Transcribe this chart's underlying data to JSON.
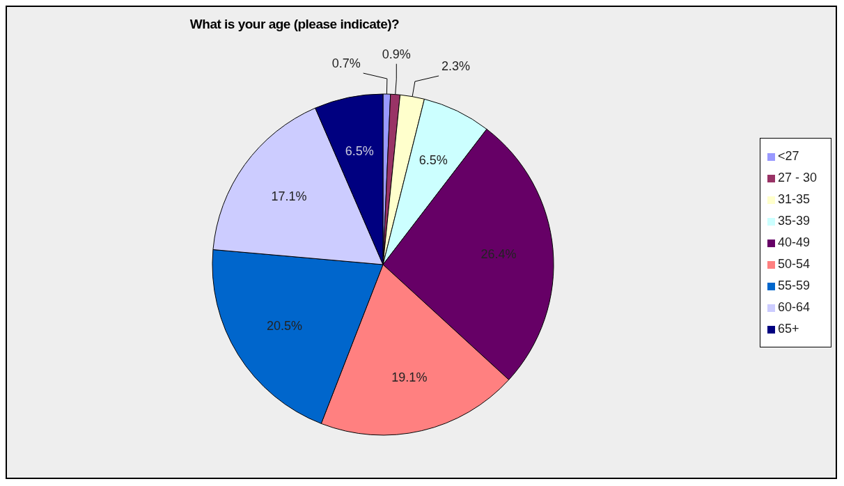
{
  "chart_data": {
    "type": "pie",
    "title": "What is your age (please indicate)?",
    "categories": [
      "<27",
      "27 - 30",
      "31-35",
      "35-39",
      "40-49",
      "50-54",
      "55-59",
      "60-64",
      "65+"
    ],
    "values": [
      0.7,
      0.9,
      2.3,
      6.5,
      26.4,
      19.1,
      20.5,
      17.1,
      6.5
    ],
    "colors": [
      "#9999ff",
      "#993366",
      "#ffffcc",
      "#ccffff",
      "#660066",
      "#ff8080",
      "#0066cc",
      "#ccccff",
      "#000080"
    ],
    "value_labels": [
      "0.7%",
      "0.9%",
      "2.3%",
      "6.5%",
      "26.4%",
      "19.1%",
      "20.5%",
      "17.1%",
      "6.5%"
    ],
    "legend": "right"
  }
}
